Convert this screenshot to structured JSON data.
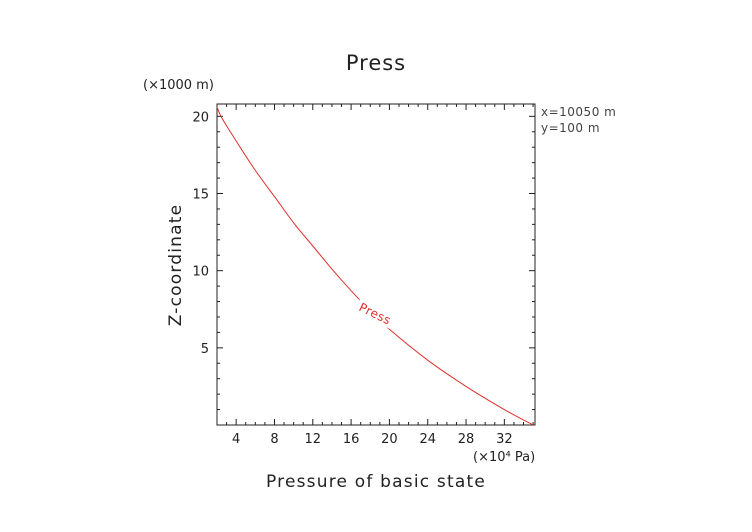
{
  "chart_data": {
    "type": "line",
    "title": "Press",
    "xlabel": "Pressure of basic state",
    "ylabel": "Z-coordinate",
    "x_unit_label": "(×10⁴ Pa)",
    "y_unit_label": "(×1000 m)",
    "xlim": [
      2.0,
      35.2
    ],
    "ylim": [
      0.0,
      20.8
    ],
    "x_ticks": [
      "4",
      "8",
      "12",
      "16",
      "20",
      "24",
      "28",
      "32"
    ],
    "x_tick_values": [
      4,
      8,
      12,
      16,
      20,
      24,
      28,
      32
    ],
    "y_ticks": [
      "5",
      "10",
      "15",
      "20"
    ],
    "y_tick_values": [
      5,
      10,
      15,
      20
    ],
    "annotations": [
      "x=10050 m",
      "y=100 m"
    ],
    "series": [
      {
        "name": "Press",
        "color": "#e0302a",
        "x": [
          35.0,
          32.0,
          28.0,
          24.0,
          20.0,
          18.0,
          16.0,
          14.0,
          12.0,
          10.0,
          8.0,
          6.0,
          4.0,
          2.5,
          2.0
        ],
        "y": [
          0.0,
          1.0,
          2.5,
          4.2,
          6.2,
          7.4,
          8.7,
          10.1,
          11.6,
          13.1,
          14.8,
          16.5,
          18.4,
          19.9,
          20.6
        ]
      }
    ]
  }
}
